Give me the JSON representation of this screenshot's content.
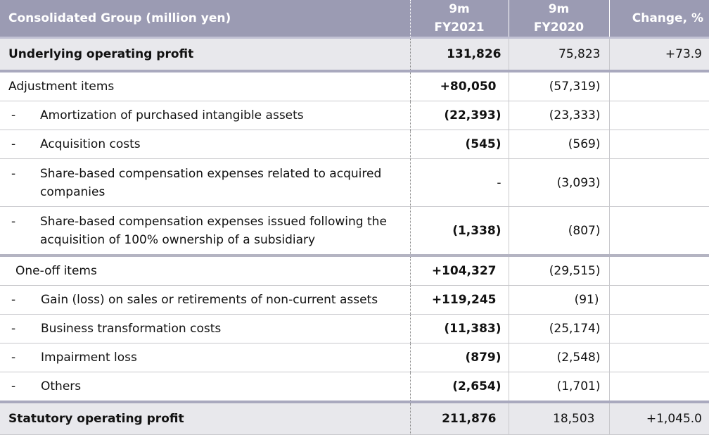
{
  "header": {
    "col1": "Consolidated Group (million yen)",
    "col2_line1": "9m",
    "col2_line2": "FY2021",
    "col3_line1": "9m",
    "col3_line2": "FY2020",
    "col4": "Change, %"
  },
  "underlying": {
    "label": "Underlying operating profit",
    "fy2021": "131,826",
    "fy2020": "75,823",
    "change": "+73.9"
  },
  "adjustment": {
    "label": "Adjustment items",
    "fy2021": "+80,050",
    "fy2020": "(57,319)",
    "items": [
      {
        "dash": "-",
        "label": "Amortization of purchased intangible assets",
        "fy2021": "(22,393)",
        "fy2020": "(23,333)"
      },
      {
        "dash": "-",
        "label": "Acquisition costs",
        "fy2021": "(545)",
        "fy2020": "(569)"
      },
      {
        "dash": "-",
        "label": "Share-based compensation expenses related to acquired companies",
        "fy2021": "-",
        "fy2020": "(3,093)"
      },
      {
        "dash": "-",
        "label": "Share-based compensation expenses issued following the acquisition of 100% ownership of a subsidiary",
        "fy2021": "(1,338)",
        "fy2020": "(807)"
      }
    ]
  },
  "oneoff": {
    "label": "One-off items",
    "fy2021": "+104,327",
    "fy2020": "(29,515)",
    "items": [
      {
        "dash": "-",
        "label": "Gain (loss) on sales or retirements of non-current assets",
        "fy2021": "+119,245",
        "fy2020": "(91)"
      },
      {
        "dash": "-",
        "label": "Business transformation costs",
        "fy2021": "(11,383)",
        "fy2020": "(25,174)"
      },
      {
        "dash": "-",
        "label": "Impairment loss",
        "fy2021": "(879)",
        "fy2020": "(2,548)"
      },
      {
        "dash": "-",
        "label": "Others",
        "fy2021": "(2,654)",
        "fy2020": "(1,701)"
      }
    ]
  },
  "statutory": {
    "label": "Statutory operating profit",
    "fy2021": "211,876",
    "fy2020": "18,503",
    "change": "+1,045.0"
  }
}
